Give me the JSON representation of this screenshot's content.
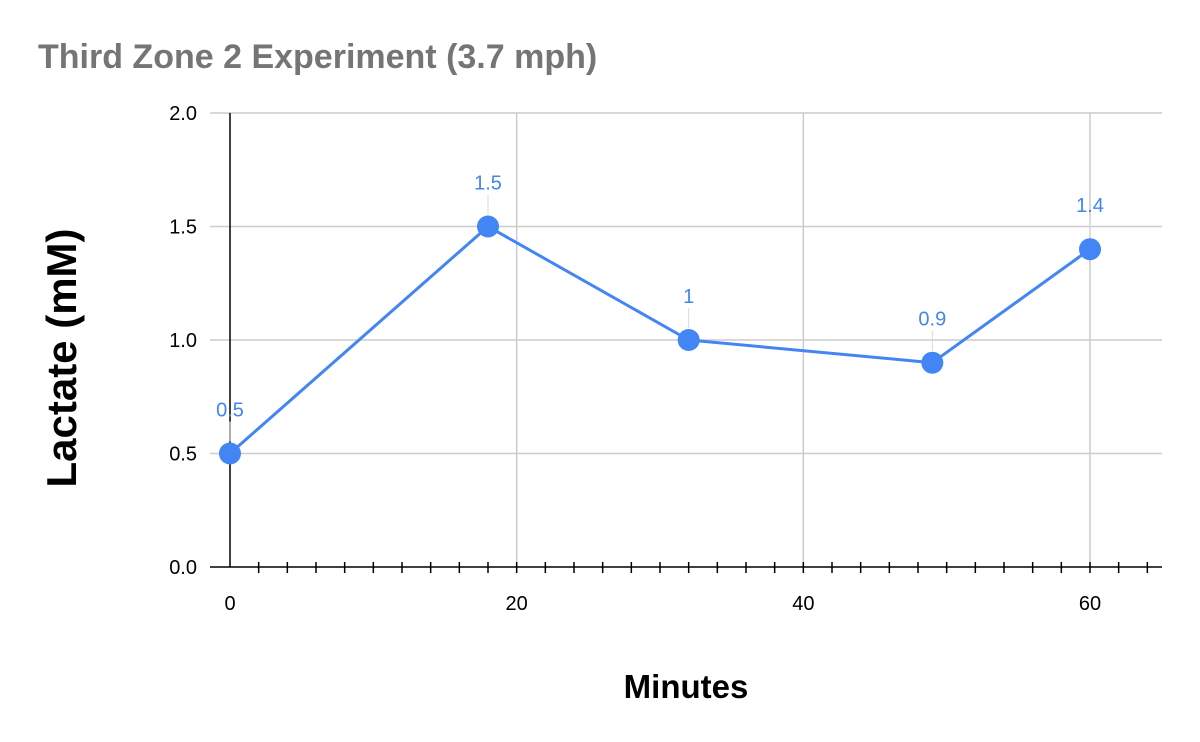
{
  "chart_data": {
    "type": "line",
    "title": "Third Zone 2 Experiment (3.7 mph)",
    "xlabel": "Minutes",
    "ylabel": "Lactate (mM)",
    "xlim": [
      0,
      64
    ],
    "ylim": [
      0,
      2
    ],
    "x_ticks": [
      0,
      20,
      40,
      60
    ],
    "y_ticks": [
      "0.0",
      "0.5",
      "1.0",
      "1.5",
      "2.0"
    ],
    "grid": true,
    "series": [
      {
        "color": "#4285f4",
        "points": [
          {
            "x": 0,
            "y": 0.5,
            "label": "0.5"
          },
          {
            "x": 18,
            "y": 1.5,
            "label": "1.5"
          },
          {
            "x": 32,
            "y": 1.0,
            "label": "1"
          },
          {
            "x": 49,
            "y": 0.9,
            "label": "0.9"
          },
          {
            "x": 60,
            "y": 1.4,
            "label": "1.4"
          }
        ]
      }
    ]
  }
}
